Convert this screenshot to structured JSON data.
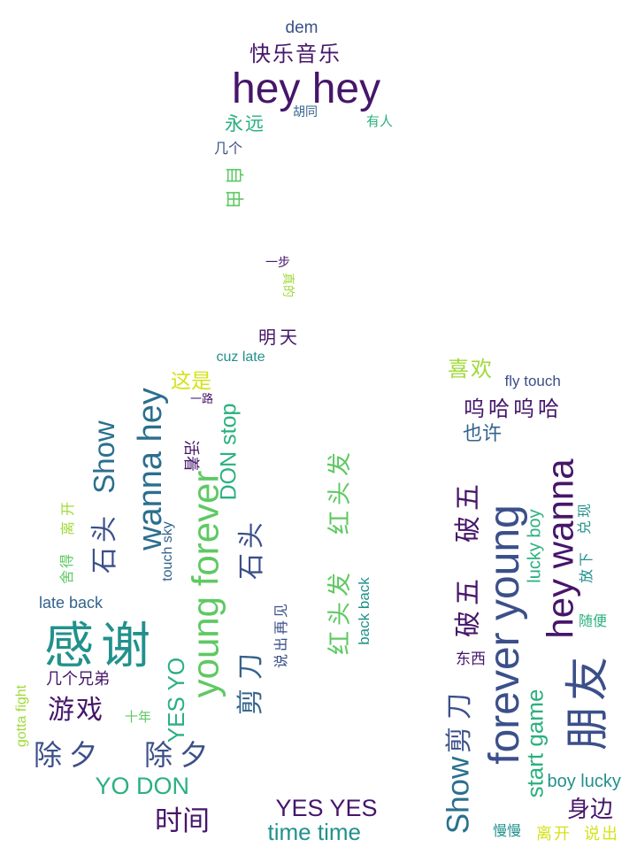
{
  "word_cloud": {
    "palette": {
      "dark_purple": "#46166a",
      "indigo": "#3b4f8a",
      "blue": "#33638d",
      "steel_blue": "#2b6f8e",
      "teal": "#21918c",
      "sea_green": "#2ab07f",
      "green": "#5ec962",
      "lime": "#a0da39",
      "yellow": "#d4e21a"
    },
    "words": [
      {
        "text": "dem",
        "color": "#3b4f8a"
      },
      {
        "text": "快乐音乐",
        "color": "#46166a"
      },
      {
        "text": "hey hey",
        "color": "#46166a"
      },
      {
        "text": "永远",
        "color": "#2ab07f"
      },
      {
        "text": "胡同",
        "color": "#33638d"
      },
      {
        "text": "有人",
        "color": "#2ab07f"
      },
      {
        "text": "几个",
        "color": "#3b4f8a"
      },
      {
        "text": "自由",
        "color": "#5ec962"
      },
      {
        "text": "一步",
        "color": "#46166a"
      },
      {
        "text": "真的",
        "color": "#a0da39"
      },
      {
        "text": "明天",
        "color": "#46166a"
      },
      {
        "text": "cuz late",
        "color": "#21918c"
      },
      {
        "text": "这是",
        "color": "#d4e21a"
      },
      {
        "text": "一路",
        "color": "#46166a"
      },
      {
        "text": "Show",
        "color": "#2b6f8e"
      },
      {
        "text": "wanna hey",
        "color": "#2b6f8e"
      },
      {
        "text": "DON stop",
        "color": "#2ab07f"
      },
      {
        "text": "活着",
        "color": "#46166a"
      },
      {
        "text": "young forever",
        "color": "#5ec962"
      },
      {
        "text": "touch sky",
        "color": "#33638d"
      },
      {
        "text": "石头",
        "color": "#3b4f8a"
      },
      {
        "text": "石头",
        "color": "#3b4f8a"
      },
      {
        "text": "离开",
        "color": "#a0da39"
      },
      {
        "text": "舍得",
        "color": "#5ec962"
      },
      {
        "text": "late back",
        "color": "#33638d"
      },
      {
        "text": "感谢",
        "color": "#21918c"
      },
      {
        "text": "几个兄弟",
        "color": "#46166a"
      },
      {
        "text": "剪刀",
        "color": "#33638d"
      },
      {
        "text": "说出再见",
        "color": "#3b4f8a"
      },
      {
        "text": "游戏",
        "color": "#46166a"
      },
      {
        "text": "gotta fight",
        "color": "#a0da39"
      },
      {
        "text": "十年",
        "color": "#5ec962"
      },
      {
        "text": "YES YO",
        "color": "#2ab07f"
      },
      {
        "text": "除夕",
        "color": "#3b4f8a"
      },
      {
        "text": "除夕",
        "color": "#3b4f8a"
      },
      {
        "text": "YO DON",
        "color": "#2ab07f"
      },
      {
        "text": "时间",
        "color": "#46166a"
      },
      {
        "text": "YES YES",
        "color": "#46166a"
      },
      {
        "text": "time time",
        "color": "#21918c"
      },
      {
        "text": "红头发",
        "color": "#5ec962"
      },
      {
        "text": "红头发",
        "color": "#5ec962"
      },
      {
        "text": "back back",
        "color": "#21918c"
      },
      {
        "text": "喜欢",
        "color": "#a0da39"
      },
      {
        "text": "fly touch",
        "color": "#3b4f8a"
      },
      {
        "text": "呜哈呜哈",
        "color": "#46166a"
      },
      {
        "text": "也许",
        "color": "#33638d"
      },
      {
        "text": "破五",
        "color": "#46166a"
      },
      {
        "text": "破五",
        "color": "#46166a"
      },
      {
        "text": "forever young",
        "color": "#3b4f8a"
      },
      {
        "text": "hey wanna",
        "color": "#46166a"
      },
      {
        "text": "lucky boy",
        "color": "#2ab07f"
      },
      {
        "text": "兑现",
        "color": "#21918c"
      },
      {
        "text": "放下",
        "color": "#21918c"
      },
      {
        "text": "随便",
        "color": "#2ab07f"
      },
      {
        "text": "朋友",
        "color": "#3b4f8a"
      },
      {
        "text": "东西",
        "color": "#46166a"
      },
      {
        "text": "剪刀",
        "color": "#3b4f8a"
      },
      {
        "text": "start game",
        "color": "#2ab07f"
      },
      {
        "text": "Show",
        "color": "#2b6f8e"
      },
      {
        "text": "boy lucky",
        "color": "#21918c"
      },
      {
        "text": "身边",
        "color": "#46166a"
      },
      {
        "text": "慢慢",
        "color": "#21918c"
      },
      {
        "text": "离开",
        "color": "#d4e21a"
      },
      {
        "text": "说出",
        "color": "#d4e21a"
      }
    ]
  }
}
